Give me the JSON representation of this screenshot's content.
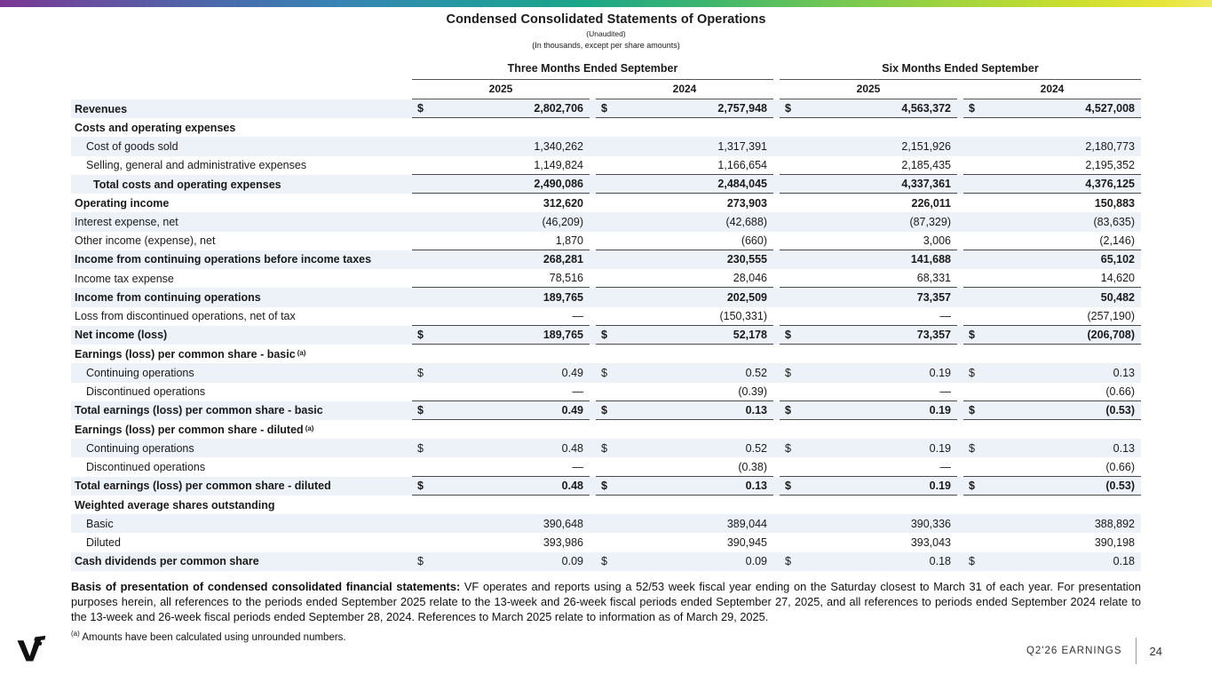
{
  "top_bar": {
    "gradient_stops": [
      "#7b3694",
      "#4a6aab",
      "#2499a0",
      "#1ca688",
      "#3cb56f",
      "#9fd43f",
      "#e8e53a",
      "#f0ec63"
    ]
  },
  "header": {
    "title": "Condensed Consolidated Statements of Operations",
    "subtitle1": "(Unaudited)",
    "subtitle2": "(In thousands, except per share amounts)"
  },
  "table": {
    "group_headers": [
      "Three Months Ended September",
      "Six Months Ended September"
    ],
    "year_headers": [
      "2025",
      "2024",
      "2025",
      "2024"
    ],
    "shaded_row_color": "#edf1f8",
    "rows": [
      {
        "label": "Revenues",
        "indent": 0,
        "bold": true,
        "bold_values": true,
        "shaded": true,
        "dollar": true,
        "line_below": true,
        "values": [
          "2,802,706",
          "2,757,948",
          "4,563,372",
          "4,527,008"
        ]
      },
      {
        "label": "Costs and operating expenses",
        "indent": 0,
        "bold": true,
        "bold_values": false,
        "shaded": false,
        "dollar": false,
        "line_below": false,
        "values": [
          "",
          "",
          "",
          ""
        ]
      },
      {
        "label": "Cost of goods sold",
        "indent": 1,
        "bold": false,
        "bold_values": false,
        "shaded": true,
        "dollar": false,
        "line_below": false,
        "values": [
          "1,340,262",
          "1,317,391",
          "2,151,926",
          "2,180,773"
        ]
      },
      {
        "label": "Selling, general and administrative expenses",
        "indent": 1,
        "bold": false,
        "bold_values": false,
        "shaded": false,
        "dollar": false,
        "line_below": true,
        "values": [
          "1,149,824",
          "1,166,654",
          "2,185,435",
          "2,195,352"
        ]
      },
      {
        "label": "Total costs and operating expenses",
        "indent": 2,
        "bold": true,
        "bold_values": true,
        "shaded": true,
        "dollar": false,
        "line_below": true,
        "values": [
          "2,490,086",
          "2,484,045",
          "4,337,361",
          "4,376,125"
        ]
      },
      {
        "label": "Operating income",
        "indent": 0,
        "bold": true,
        "bold_values": true,
        "shaded": false,
        "dollar": false,
        "line_below": false,
        "values": [
          "312,620",
          "273,903",
          "226,011",
          "150,883"
        ]
      },
      {
        "label": "Interest expense, net",
        "indent": 0,
        "bold": false,
        "bold_values": false,
        "shaded": true,
        "dollar": false,
        "line_below": false,
        "values": [
          "(46,209)",
          "(42,688)",
          "(87,329)",
          "(83,635)"
        ]
      },
      {
        "label": "Other income (expense), net",
        "indent": 0,
        "bold": false,
        "bold_values": false,
        "shaded": false,
        "dollar": false,
        "line_below": true,
        "values": [
          "1,870",
          "(660)",
          "3,006",
          "(2,146)"
        ]
      },
      {
        "label": "Income from continuing operations before income taxes",
        "indent": 0,
        "bold": true,
        "bold_values": true,
        "shaded": true,
        "dollar": false,
        "line_below": false,
        "values": [
          "268,281",
          "230,555",
          "141,688",
          "65,102"
        ]
      },
      {
        "label": "Income tax expense",
        "indent": 0,
        "bold": false,
        "bold_values": false,
        "shaded": false,
        "dollar": false,
        "line_below": true,
        "values": [
          "78,516",
          "28,046",
          "68,331",
          "14,620"
        ]
      },
      {
        "label": "Income from continuing operations",
        "indent": 0,
        "bold": true,
        "bold_values": true,
        "shaded": true,
        "dollar": false,
        "line_below": false,
        "values": [
          "189,765",
          "202,509",
          "73,357",
          "50,482"
        ]
      },
      {
        "label": "Loss from discontinued operations, net of tax",
        "indent": 0,
        "bold": false,
        "bold_values": false,
        "shaded": false,
        "dollar": false,
        "line_below": true,
        "values": [
          "—",
          "(150,331)",
          "—",
          "(257,190)"
        ]
      },
      {
        "label": "Net income (loss)",
        "indent": 0,
        "bold": true,
        "bold_values": true,
        "shaded": true,
        "dollar": true,
        "line_below": true,
        "values": [
          "189,765",
          "52,178",
          "73,357",
          "(206,708)"
        ]
      },
      {
        "label": "Earnings (loss) per common share - basic",
        "sup": "(a)",
        "indent": 0,
        "bold": true,
        "bold_values": false,
        "shaded": false,
        "dollar": false,
        "line_below": false,
        "values": [
          "",
          "",
          "",
          ""
        ]
      },
      {
        "label": "Continuing operations",
        "indent": 1,
        "bold": false,
        "bold_values": false,
        "shaded": true,
        "dollar": true,
        "line_below": false,
        "values": [
          "0.49",
          "0.52",
          "0.19",
          "0.13"
        ]
      },
      {
        "label": "Discontinued operations",
        "indent": 1,
        "bold": false,
        "bold_values": false,
        "shaded": false,
        "dollar": false,
        "line_below": true,
        "values": [
          "—",
          "(0.39)",
          "—",
          "(0.66)"
        ]
      },
      {
        "label": "Total earnings (loss) per common share - basic",
        "indent": 0,
        "bold": true,
        "bold_values": true,
        "shaded": true,
        "dollar": true,
        "line_below": true,
        "values": [
          "0.49",
          "0.13",
          "0.19",
          "(0.53)"
        ]
      },
      {
        "label": "Earnings (loss) per common share - diluted",
        "sup": "(a)",
        "indent": 0,
        "bold": true,
        "bold_values": false,
        "shaded": false,
        "dollar": false,
        "line_below": false,
        "values": [
          "",
          "",
          "",
          ""
        ]
      },
      {
        "label": "Continuing operations",
        "indent": 1,
        "bold": false,
        "bold_values": false,
        "shaded": true,
        "dollar": true,
        "line_below": false,
        "values": [
          "0.48",
          "0.52",
          "0.19",
          "0.13"
        ]
      },
      {
        "label": "Discontinued operations",
        "indent": 1,
        "bold": false,
        "bold_values": false,
        "shaded": false,
        "dollar": false,
        "line_below": true,
        "values": [
          "—",
          "(0.38)",
          "—",
          "(0.66)"
        ]
      },
      {
        "label": "Total earnings (loss) per common share - diluted",
        "indent": 0,
        "bold": true,
        "bold_values": true,
        "shaded": true,
        "dollar": true,
        "line_below": true,
        "values": [
          "0.48",
          "0.13",
          "0.19",
          "(0.53)"
        ]
      },
      {
        "label": "Weighted average shares outstanding",
        "indent": 0,
        "bold": true,
        "bold_values": false,
        "shaded": false,
        "dollar": false,
        "line_below": false,
        "values": [
          "",
          "",
          "",
          ""
        ]
      },
      {
        "label": "Basic",
        "indent": 1,
        "bold": false,
        "bold_values": false,
        "shaded": true,
        "dollar": false,
        "line_below": false,
        "values": [
          "390,648",
          "389,044",
          "390,336",
          "388,892"
        ]
      },
      {
        "label": "Diluted",
        "indent": 1,
        "bold": false,
        "bold_values": false,
        "shaded": false,
        "dollar": false,
        "line_below": false,
        "values": [
          "393,986",
          "390,945",
          "393,043",
          "390,198"
        ]
      },
      {
        "label": "Cash dividends per common share",
        "indent": 0,
        "bold": true,
        "bold_values": false,
        "shaded": true,
        "dollar": true,
        "line_below": false,
        "values": [
          "0.09",
          "0.09",
          "0.18",
          "0.18"
        ]
      }
    ]
  },
  "basis_note": {
    "lead": "Basis of presentation of condensed consolidated financial statements:",
    "body": " VF operates and reports using a 52/53 week fiscal year ending on the Saturday closest to March 31 of each year. For presentation purposes herein, all references to the periods ended September 2025 relate to the 13-week and 26-week fiscal periods ended September 27, 2025, and all references to periods ended September 2024 relate to the 13-week and 26-week fiscal periods ended September 28, 2024. References to March 2025 relate to information as of March 29, 2025."
  },
  "footnote": {
    "marker": "(a)",
    "text": " Amounts have been calculated using unrounded numbers."
  },
  "page_footer": {
    "earnings_label": "Q2'26 EARNINGS",
    "page_number": "24"
  }
}
